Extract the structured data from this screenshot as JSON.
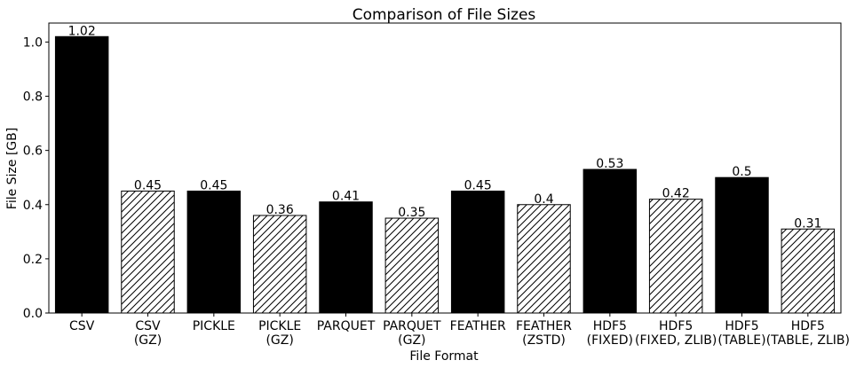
{
  "chart_data": {
    "type": "bar",
    "title": "Comparison of File Sizes",
    "xlabel": "File Format",
    "ylabel": "File Size [GB]",
    "ylim": [
      0,
      1.07
    ],
    "yticks": [
      "0.0",
      "0.2",
      "0.4",
      "0.6",
      "0.8",
      "1.0"
    ],
    "grid": false,
    "legend": "none",
    "colors": {
      "solid": "#000000",
      "hatched_fill": "#ffffff",
      "edge": "#000000"
    },
    "categories": [
      [
        "CSV"
      ],
      [
        "CSV",
        "(GZ)"
      ],
      [
        "PICKLE"
      ],
      [
        "PICKLE",
        "(GZ)"
      ],
      [
        "PARQUET"
      ],
      [
        "PARQUET",
        "(GZ)"
      ],
      [
        "FEATHER"
      ],
      [
        "FEATHER",
        "(ZSTD)"
      ],
      [
        "HDF5",
        "(FIXED)"
      ],
      [
        "HDF5",
        "(FIXED, ZLIB)"
      ],
      [
        "HDF5",
        "(TABLE)"
      ],
      [
        "HDF5",
        "(TABLE, ZLIB)"
      ]
    ],
    "values": [
      1.02,
      0.45,
      0.45,
      0.36,
      0.41,
      0.35,
      0.45,
      0.4,
      0.53,
      0.42,
      0.5,
      0.31
    ],
    "value_labels": [
      "1.02",
      "0.45",
      "0.45",
      "0.36",
      "0.41",
      "0.35",
      "0.45",
      "0.4",
      "0.53",
      "0.42",
      "0.5",
      "0.31"
    ],
    "styles": [
      "solid",
      "hatched",
      "solid",
      "hatched",
      "solid",
      "hatched",
      "solid",
      "hatched",
      "solid",
      "hatched",
      "solid",
      "hatched"
    ]
  }
}
